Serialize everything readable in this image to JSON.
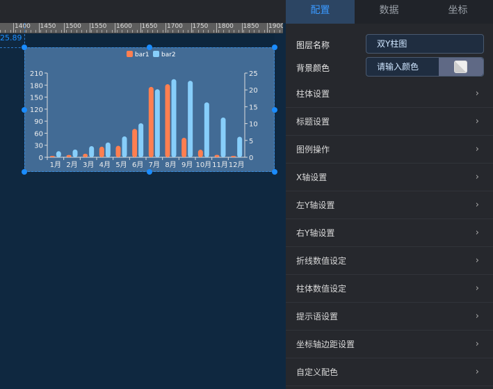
{
  "ruler": {
    "labels": [
      "1400",
      "1450",
      "1500",
      "1550",
      "1600",
      "1650",
      "1700",
      "1750",
      "1800",
      "1850",
      "1900"
    ]
  },
  "canvas": {
    "coord_readout": "25.89"
  },
  "chart_data": {
    "type": "bar",
    "categories": [
      "1月",
      "2月",
      "3月",
      "4月",
      "5月",
      "6月",
      "7月",
      "8月",
      "9月",
      "10月",
      "11月",
      "12月"
    ],
    "series": [
      {
        "name": "bar1",
        "axis": "left",
        "color": "#ff7f50",
        "values": [
          2.6,
          5.9,
          9.0,
          26.4,
          28.7,
          70.7,
          175.6,
          182.2,
          48.7,
          18.8,
          6.0,
          2.3
        ]
      },
      {
        "name": "bar2",
        "axis": "right",
        "color": "#87cefa",
        "values": [
          1.8,
          2.3,
          3.3,
          4.4,
          6.2,
          10.1,
          20.2,
          23.2,
          22.7,
          16.3,
          11.8,
          6.1
        ]
      }
    ],
    "left_axis": {
      "ylim": [
        0,
        210
      ],
      "ticks": [
        "0",
        "30",
        "60",
        "90",
        "120",
        "150",
        "180",
        "210"
      ]
    },
    "right_axis": {
      "ylim": [
        0,
        25
      ],
      "ticks": [
        "0",
        "5",
        "10",
        "15",
        "20",
        "25"
      ]
    },
    "legend": "top-center",
    "background": "#426b95"
  },
  "panel": {
    "tabs": [
      {
        "label": "配置"
      },
      {
        "label": "数据"
      },
      {
        "label": "坐标"
      }
    ],
    "layer_name_label": "图层名称",
    "layer_name_value": "双Y柱图",
    "bg_color_label": "背景颜色",
    "bg_color_placeholder": "请输入颜色",
    "sections": [
      "柱体设置",
      "标题设置",
      "图例操作",
      "X轴设置",
      "左Y轴设置",
      "右Y轴设置",
      "折线数值设定",
      "柱体数值设定",
      "提示语设置",
      "坐标轴边距设置",
      "自定义配色"
    ],
    "chevron": "›"
  }
}
